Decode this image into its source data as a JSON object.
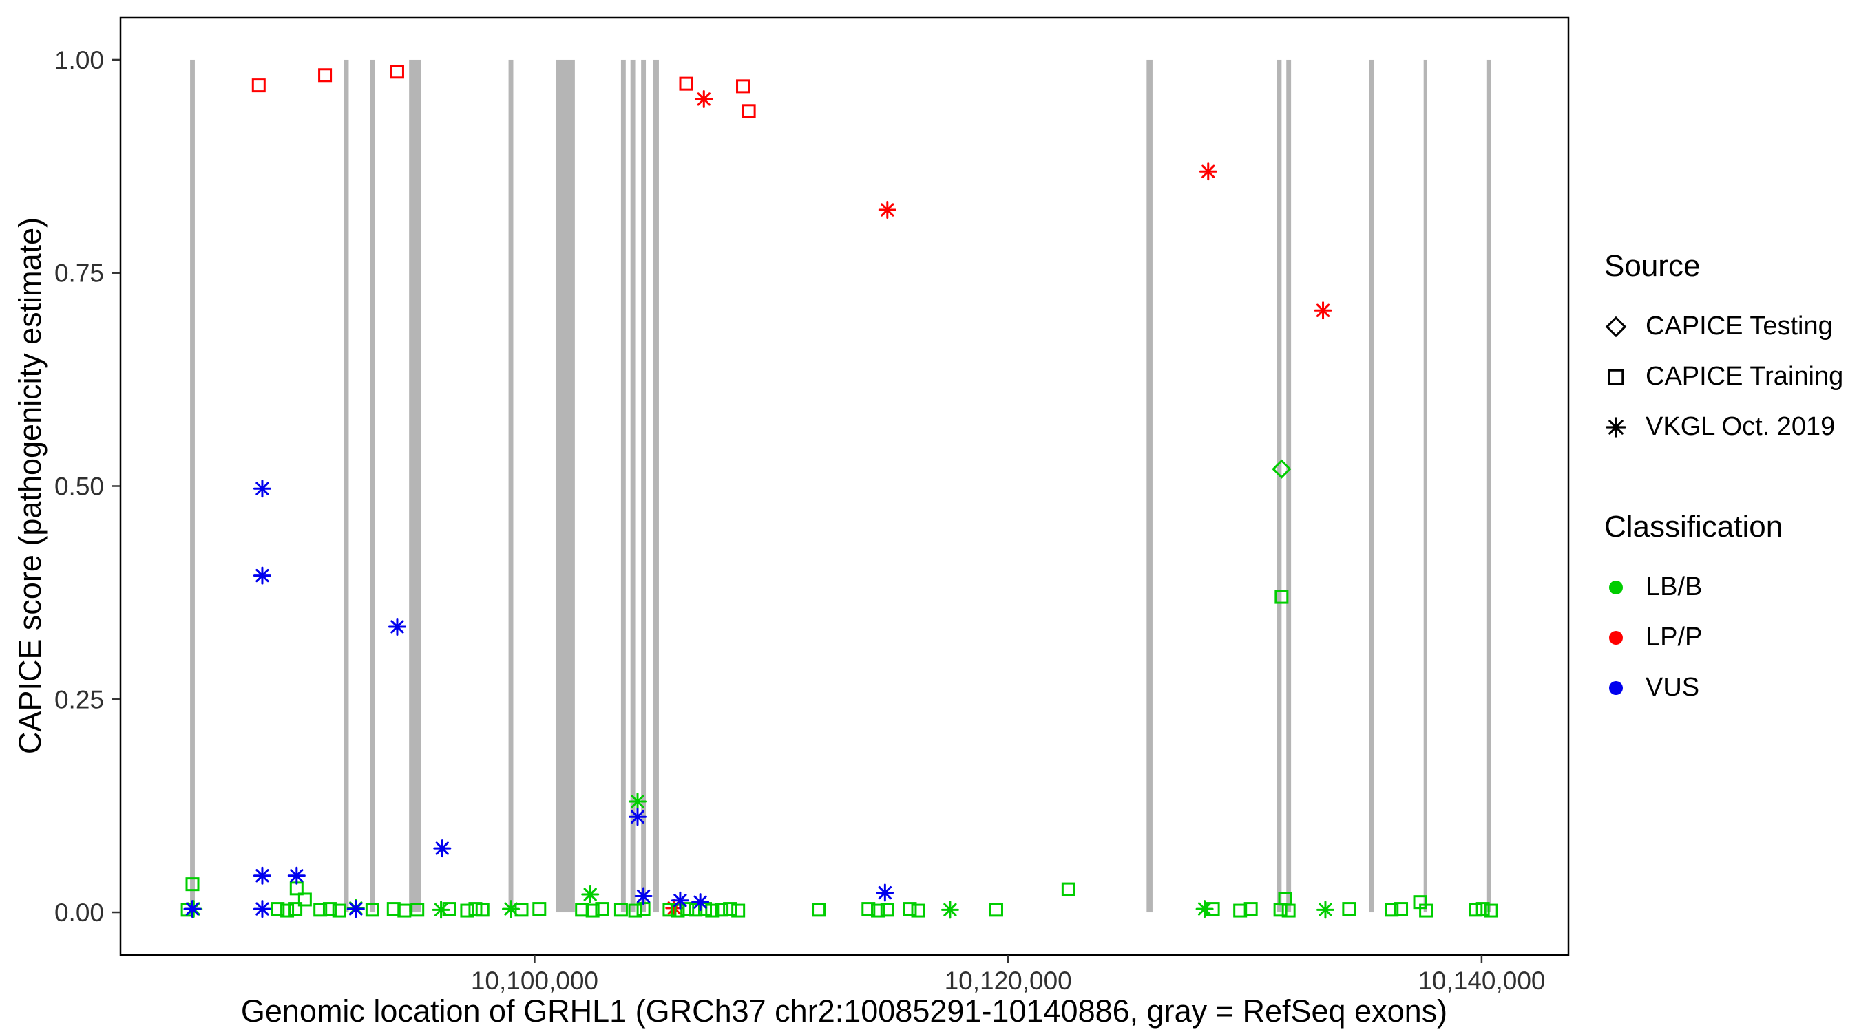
{
  "chart_data": {
    "type": "scatter",
    "title": "",
    "xlabel": "Genomic location of GRHL1 (GRCh37 chr2:10085291-10140886, gray = RefSeq exons)",
    "ylabel": "CAPICE score (pathogenicity estimate)",
    "xlim": [
      10082511,
      10143666
    ],
    "ylim": [
      -0.05,
      1.05
    ],
    "grid": false,
    "legend_position": "right",
    "x_ticks": [
      {
        "value": 10100000,
        "label": "10,100,000"
      },
      {
        "value": 10120000,
        "label": "10,120,000"
      },
      {
        "value": 10140000,
        "label": "10,140,000"
      }
    ],
    "y_ticks": [
      {
        "value": 0.0,
        "label": "0.00"
      },
      {
        "value": 0.25,
        "label": "0.25"
      },
      {
        "value": 0.5,
        "label": "0.50"
      },
      {
        "value": 0.75,
        "label": "0.75"
      },
      {
        "value": 1.0,
        "label": "1.00"
      }
    ],
    "exon_color": "#B5B5B5",
    "exons": [
      [
        10085450,
        10085650
      ],
      [
        10091950,
        10092150
      ],
      [
        10093050,
        10093250
      ],
      [
        10094700,
        10095200
      ],
      [
        10098900,
        10099100
      ],
      [
        10100900,
        10101700
      ],
      [
        10103650,
        10103850
      ],
      [
        10104050,
        10104250
      ],
      [
        10104500,
        10104700
      ],
      [
        10105000,
        10105250
      ],
      [
        10125850,
        10126100
      ],
      [
        10131350,
        10131550
      ],
      [
        10131750,
        10131950
      ],
      [
        10135250,
        10135450
      ],
      [
        10137550,
        10137700
      ],
      [
        10140200,
        10140400
      ]
    ],
    "series": [
      {
        "name": "LP/P - CAPICE Training",
        "classification": "LP/P",
        "source": "CAPICE Training",
        "shape": "square",
        "color": "#FF0000",
        "points": [
          [
            10088350,
            0.97
          ],
          [
            10091150,
            0.982
          ],
          [
            10094200,
            0.986
          ],
          [
            10106400,
            0.972
          ],
          [
            10108800,
            0.969
          ],
          [
            10109050,
            0.94
          ]
        ]
      },
      {
        "name": "LP/P - VKGL Oct. 2019",
        "classification": "LP/P",
        "source": "VKGL Oct. 2019",
        "shape": "asterisk",
        "color": "#FF0000",
        "points": [
          [
            10107150,
            0.954
          ],
          [
            10114900,
            0.824
          ],
          [
            10128450,
            0.869
          ],
          [
            10133300,
            0.706
          ],
          [
            10105900,
            0.005
          ]
        ]
      },
      {
        "name": "LB/B - CAPICE Testing",
        "classification": "LB/B",
        "source": "CAPICE Testing",
        "shape": "diamond",
        "color": "#00CD00",
        "points": [
          [
            10131550,
            0.52
          ]
        ]
      },
      {
        "name": "LB/B - CAPICE Training",
        "classification": "LB/B",
        "source": "CAPICE Training",
        "shape": "square",
        "color": "#00CD00",
        "points": [
          [
            10131550,
            0.37
          ],
          [
            10085550,
            0.033
          ],
          [
            10089950,
            0.028
          ],
          [
            10122550,
            0.027
          ],
          [
            10090300,
            0.015
          ],
          [
            10131700,
            0.016
          ],
          [
            10137400,
            0.012
          ],
          [
            10085350,
            0.003
          ],
          [
            10089150,
            0.004
          ],
          [
            10089550,
            0.002
          ],
          [
            10089900,
            0.004
          ],
          [
            10090950,
            0.003
          ],
          [
            10091350,
            0.004
          ],
          [
            10091750,
            0.002
          ],
          [
            10093150,
            0.003
          ],
          [
            10094050,
            0.004
          ],
          [
            10094500,
            0.002
          ],
          [
            10095050,
            0.003
          ],
          [
            10096400,
            0.004
          ],
          [
            10097150,
            0.002
          ],
          [
            10097500,
            0.004
          ],
          [
            10097800,
            0.003
          ],
          [
            10099450,
            0.003
          ],
          [
            10100200,
            0.004
          ],
          [
            10102000,
            0.003
          ],
          [
            10102450,
            0.002
          ],
          [
            10102850,
            0.004
          ],
          [
            10103650,
            0.003
          ],
          [
            10104250,
            0.002
          ],
          [
            10104600,
            0.004
          ],
          [
            10105700,
            0.003
          ],
          [
            10106050,
            0.002
          ],
          [
            10106450,
            0.004
          ],
          [
            10106800,
            0.003
          ],
          [
            10107200,
            0.004
          ],
          [
            10107500,
            0.002
          ],
          [
            10107900,
            0.003
          ],
          [
            10108250,
            0.004
          ],
          [
            10108600,
            0.002
          ],
          [
            10112000,
            0.003
          ],
          [
            10114100,
            0.004
          ],
          [
            10114500,
            0.002
          ],
          [
            10114900,
            0.003
          ],
          [
            10115850,
            0.004
          ],
          [
            10116200,
            0.002
          ],
          [
            10119500,
            0.003
          ],
          [
            10128650,
            0.004
          ],
          [
            10129800,
            0.002
          ],
          [
            10130250,
            0.004
          ],
          [
            10131500,
            0.003
          ],
          [
            10131850,
            0.002
          ],
          [
            10134400,
            0.004
          ],
          [
            10136200,
            0.003
          ],
          [
            10136600,
            0.004
          ],
          [
            10137650,
            0.002
          ],
          [
            10139750,
            0.003
          ],
          [
            10140050,
            0.004
          ],
          [
            10140400,
            0.002
          ]
        ]
      },
      {
        "name": "LB/B - VKGL Oct. 2019",
        "classification": "LB/B",
        "source": "VKGL Oct. 2019",
        "shape": "asterisk",
        "color": "#00CD00",
        "points": [
          [
            10085600,
            0.004
          ],
          [
            10092450,
            0.005
          ],
          [
            10096050,
            0.003
          ],
          [
            10099000,
            0.004
          ],
          [
            10102350,
            0.021
          ],
          [
            10104350,
            0.13
          ],
          [
            10117550,
            0.003
          ],
          [
            10128300,
            0.004
          ],
          [
            10133400,
            0.003
          ]
        ]
      },
      {
        "name": "VUS - VKGL Oct. 2019",
        "classification": "VUS",
        "source": "VKGL Oct. 2019",
        "shape": "asterisk",
        "color": "#0000EE",
        "points": [
          [
            10088500,
            0.497
          ],
          [
            10088500,
            0.395
          ],
          [
            10094200,
            0.335
          ],
          [
            10096100,
            0.075
          ],
          [
            10088500,
            0.043
          ],
          [
            10089950,
            0.043
          ],
          [
            10104350,
            0.112
          ],
          [
            10104600,
            0.019
          ],
          [
            10106150,
            0.014
          ],
          [
            10107000,
            0.012
          ],
          [
            10114800,
            0.023
          ],
          [
            10088500,
            0.004
          ],
          [
            10085550,
            0.004
          ],
          [
            10092450,
            0.004
          ]
        ]
      }
    ]
  },
  "legend": {
    "source": {
      "title": "Source",
      "items": [
        {
          "label": "CAPICE Testing",
          "shape": "diamond"
        },
        {
          "label": "CAPICE Training",
          "shape": "square"
        },
        {
          "label": "VKGL Oct. 2019",
          "shape": "asterisk"
        }
      ]
    },
    "classification": {
      "title": "Classification",
      "items": [
        {
          "label": "LB/B",
          "color": "#00CD00"
        },
        {
          "label": "LP/P",
          "color": "#FF0000"
        },
        {
          "label": "VUS",
          "color": "#0000EE"
        }
      ]
    }
  }
}
